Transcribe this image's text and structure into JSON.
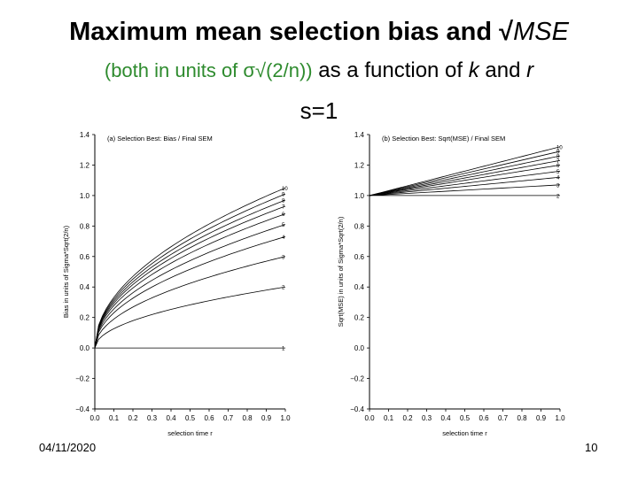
{
  "slide": {
    "title_main": "Maximum mean selection bias and √",
    "title_mse": "MSE",
    "subtitle_green": "(both in units of σ√(2/n))",
    "subtitle_rest_1": " as a function of ",
    "subtitle_k": "k",
    "subtitle_rest_2": " and ",
    "subtitle_r": "r",
    "s_label": "s=1",
    "date": "04/11/2020",
    "page_number": "10"
  },
  "chart_data": [
    {
      "type": "line",
      "title": "(a) Selection Best: Bias / Final SEM",
      "xlabel": "selection time r",
      "ylabel": "Bias in units of Sigma*Sqrt(2/n)",
      "xlim": [
        0.0,
        1.0
      ],
      "ylim": [
        -0.4,
        1.4
      ],
      "x_ticks": [
        "0.0",
        "0.1",
        "0.2",
        "0.3",
        "0.4",
        "0.5",
        "0.6",
        "0.7",
        "0.8",
        "0.9",
        "1.0"
      ],
      "y_ticks": [
        "-0.4",
        "-0.2",
        "0.0",
        "0.2",
        "0.4",
        "0.6",
        "0.8",
        "1.0",
        "1.2",
        "1.4"
      ],
      "series": [
        {
          "name": "1",
          "endpoint": 0.0
        },
        {
          "name": "2",
          "endpoint": 0.4
        },
        {
          "name": "3",
          "endpoint": 0.6
        },
        {
          "name": "4",
          "endpoint": 0.73
        },
        {
          "name": "5",
          "endpoint": 0.81
        },
        {
          "name": "6",
          "endpoint": 0.88
        },
        {
          "name": "7",
          "endpoint": 0.93
        },
        {
          "name": "8",
          "endpoint": 0.97
        },
        {
          "name": "9",
          "endpoint": 1.01
        },
        {
          "name": "10",
          "endpoint": 1.05
        }
      ],
      "curve_shape": "endpoint * sqrt(x)"
    },
    {
      "type": "line",
      "title": "(b) Selection Best: Sqrt(MSE) / Final SEM",
      "xlabel": "selection time r",
      "ylabel": "Sqrt(MSE) in units of Sigma*Sqrt(2/n)",
      "xlim": [
        0.0,
        1.0
      ],
      "ylim": [
        -0.4,
        1.4
      ],
      "x_ticks": [
        "0.0",
        "0.1",
        "0.2",
        "0.3",
        "0.4",
        "0.5",
        "0.6",
        "0.7",
        "0.8",
        "0.9",
        "1.0"
      ],
      "y_ticks": [
        "-0.4",
        "-0.2",
        "0.0",
        "0.2",
        "0.4",
        "0.6",
        "0.8",
        "1.0",
        "1.2",
        "1.4"
      ],
      "series": [
        {
          "name": "2",
          "endpoint": 1.0
        },
        {
          "name": "3",
          "endpoint": 1.07
        },
        {
          "name": "4",
          "endpoint": 1.12
        },
        {
          "name": "5",
          "endpoint": 1.16
        },
        {
          "name": "6",
          "endpoint": 1.2
        },
        {
          "name": "7",
          "endpoint": 1.23
        },
        {
          "name": "8",
          "endpoint": 1.26
        },
        {
          "name": "9",
          "endpoint": 1.29
        },
        {
          "name": "10",
          "endpoint": 1.32
        }
      ],
      "start_value": 1.0,
      "curve_shape": "linear from (0, 1.0) to (1, endpoint)"
    }
  ]
}
